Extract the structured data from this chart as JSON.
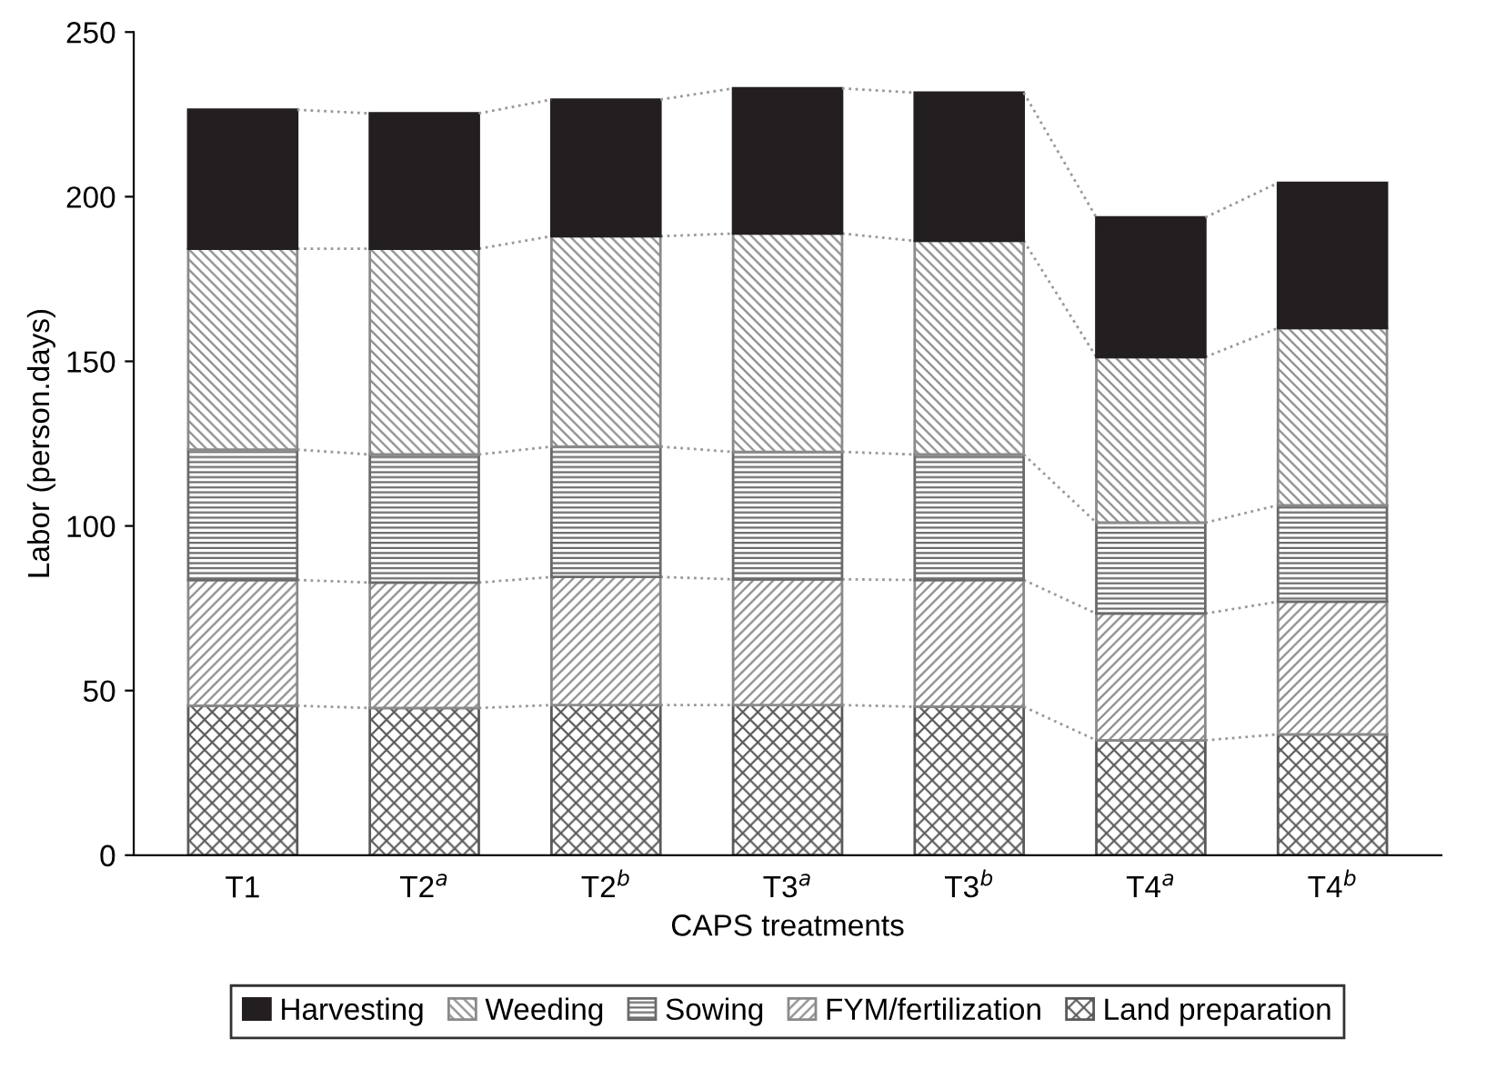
{
  "chart_data": {
    "type": "bar",
    "stacked": true,
    "xlabel": "CAPS treatments",
    "ylabel": "Labor (person.days)",
    "categories": [
      "T1",
      "T2$^{a}$",
      "T2$^{b}$",
      "T3$^{a}$",
      "T3$^{b}$",
      "T4$^{a}$",
      "T4$^{b}$"
    ],
    "series": [
      {
        "name": "Land preparation",
        "color": "#5a5a5a",
        "values": [
          45.4,
          44.7,
          45.6,
          45.6,
          45.1,
          34.9,
          36.7
        ]
      },
      {
        "name": "FYM/fertilization",
        "color": "#8a8a8a",
        "values": [
          38.2,
          38.1,
          38.9,
          38.2,
          38.5,
          38.5,
          40.3
        ]
      },
      {
        "name": "Sowing",
        "color": "#6a6a6a",
        "values": [
          39.6,
          38.9,
          39.6,
          38.7,
          38.1,
          27.6,
          29.3
        ]
      },
      {
        "name": "Weeding",
        "color": "#8a8a8a",
        "values": [
          61.0,
          62.5,
          63.9,
          66.3,
          64.9,
          50.3,
          53.8
        ]
      },
      {
        "name": "Harvesting",
        "color": "#231f20",
        "values": [
          42.2,
          41.1,
          41.5,
          44.1,
          45.0,
          42.4,
          44.1
        ]
      }
    ],
    "ylim": [
      0,
      250
    ],
    "yticks": [
      0,
      50,
      100,
      150,
      200,
      250
    ],
    "grid": false,
    "legend": "bottom"
  }
}
